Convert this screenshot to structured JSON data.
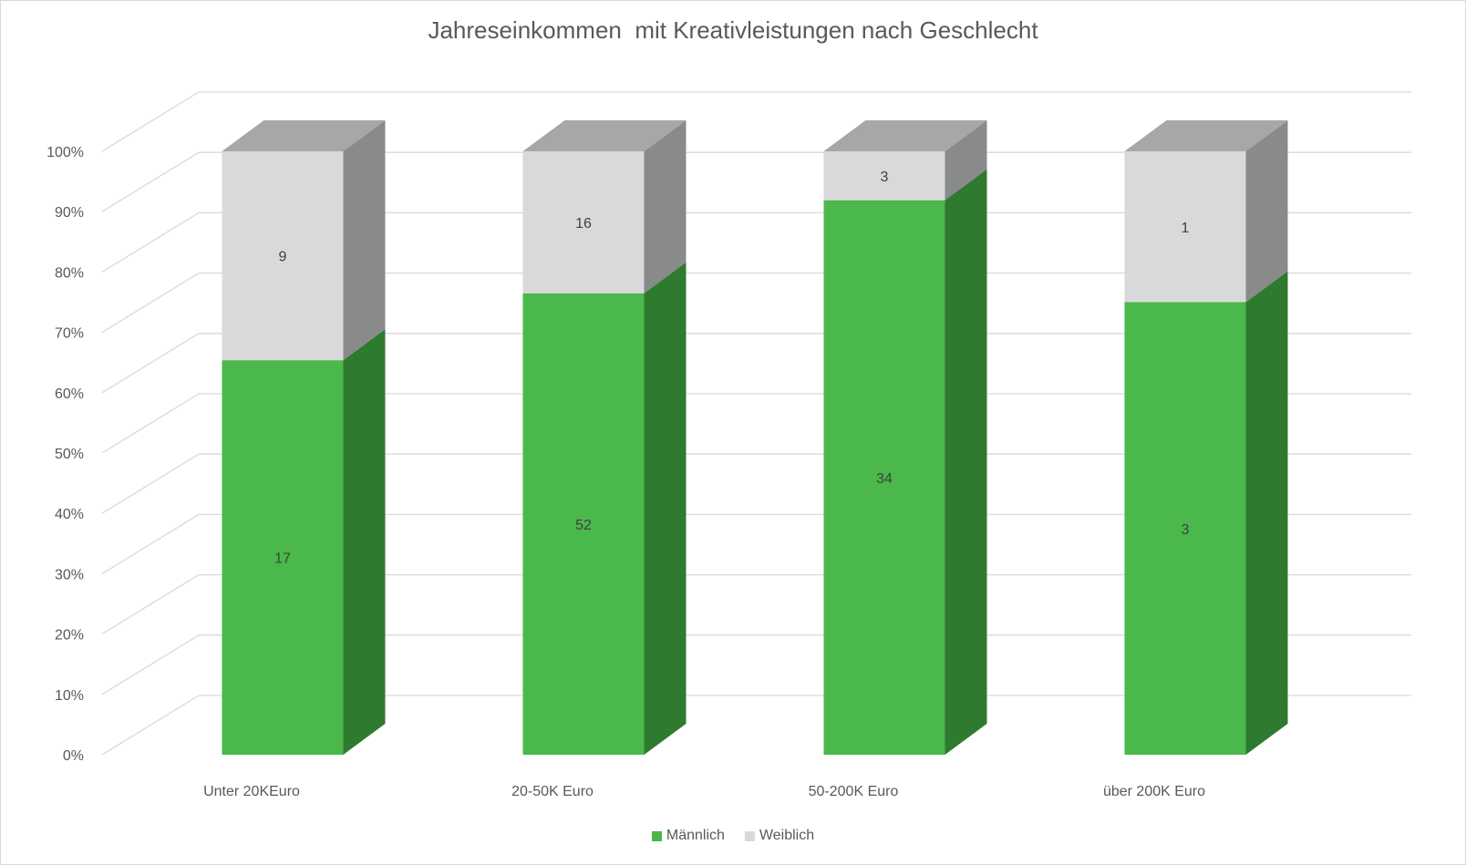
{
  "chart_data": {
    "type": "bar",
    "stacked": "percent",
    "title": "Jahreseinkommen  mit Kreativleistungen nach Geschlecht",
    "categories": [
      "Unter 20KEuro",
      "20-50K Euro",
      "50-200K Euro",
      "über 200K Euro"
    ],
    "series": [
      {
        "name": "Männlich",
        "values": [
          17,
          52,
          34,
          3
        ],
        "color": "#4ab84a"
      },
      {
        "name": "Weiblich",
        "values": [
          9,
          16,
          3,
          1
        ],
        "color": "#d9d9db"
      }
    ],
    "ylim": [
      0,
      100
    ],
    "yticks": [
      "0%",
      "10%",
      "20%",
      "30%",
      "40%",
      "50%",
      "60%",
      "70%",
      "80%",
      "90%",
      "100%"
    ],
    "grid": true,
    "legend": "bottom",
    "style": "3d-column"
  }
}
